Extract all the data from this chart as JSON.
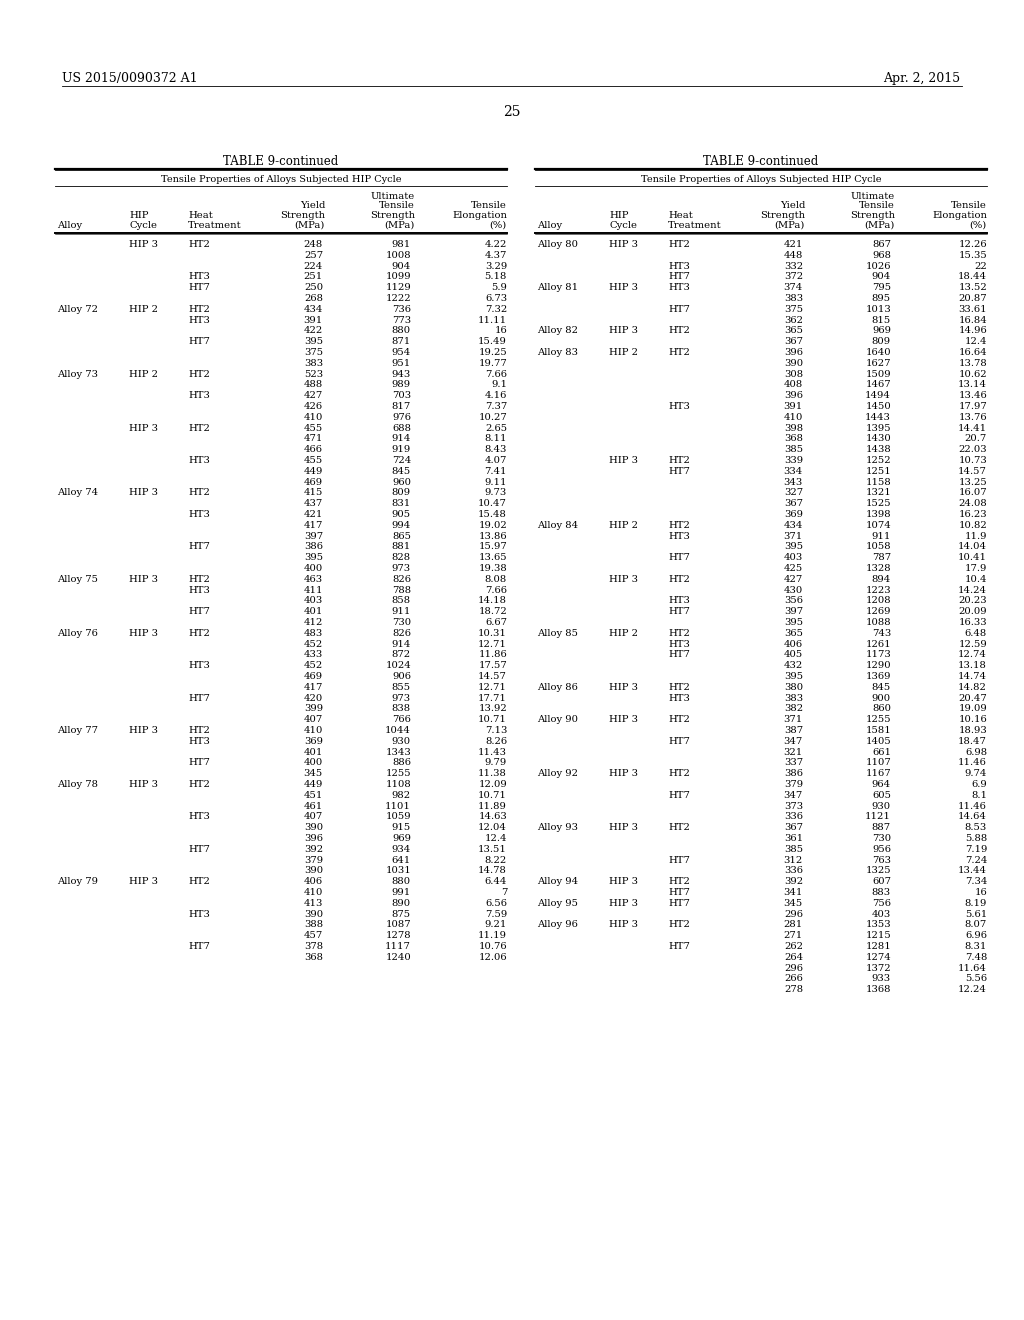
{
  "header_left": "US 2015/0090372 A1",
  "header_right": "Apr. 2, 2015",
  "page_number": "25",
  "table_title": "TABLE 9-continued",
  "table_subtitle": "Tensile Properties of Alloys Subjected HIP Cycle",
  "left_rows": [
    [
      "",
      "HIP 3",
      "HT2",
      "248",
      "981",
      "4.22"
    ],
    [
      "",
      "",
      "",
      "257",
      "1008",
      "4.37"
    ],
    [
      "",
      "",
      "",
      "224",
      "904",
      "3.29"
    ],
    [
      "",
      "",
      "HT3",
      "251",
      "1099",
      "5.18"
    ],
    [
      "",
      "",
      "HT7",
      "250",
      "1129",
      "5.9"
    ],
    [
      "",
      "",
      "",
      "268",
      "1222",
      "6.73"
    ],
    [
      "Alloy 72",
      "HIP 2",
      "HT2",
      "434",
      "736",
      "7.32"
    ],
    [
      "",
      "",
      "HT3",
      "391",
      "773",
      "11.11"
    ],
    [
      "",
      "",
      "",
      "422",
      "880",
      "16"
    ],
    [
      "",
      "",
      "HT7",
      "395",
      "871",
      "15.49"
    ],
    [
      "",
      "",
      "",
      "375",
      "954",
      "19.25"
    ],
    [
      "",
      "",
      "",
      "383",
      "951",
      "19.77"
    ],
    [
      "Alloy 73",
      "HIP 2",
      "HT2",
      "523",
      "943",
      "7.66"
    ],
    [
      "",
      "",
      "",
      "488",
      "989",
      "9.1"
    ],
    [
      "",
      "",
      "HT3",
      "427",
      "703",
      "4.16"
    ],
    [
      "",
      "",
      "",
      "426",
      "817",
      "7.37"
    ],
    [
      "",
      "",
      "",
      "410",
      "976",
      "10.27"
    ],
    [
      "",
      "HIP 3",
      "HT2",
      "455",
      "688",
      "2.65"
    ],
    [
      "",
      "",
      "",
      "471",
      "914",
      "8.11"
    ],
    [
      "",
      "",
      "",
      "466",
      "919",
      "8.43"
    ],
    [
      "",
      "",
      "HT3",
      "455",
      "724",
      "4.07"
    ],
    [
      "",
      "",
      "",
      "449",
      "845",
      "7.41"
    ],
    [
      "",
      "",
      "",
      "469",
      "960",
      "9.11"
    ],
    [
      "Alloy 74",
      "HIP 3",
      "HT2",
      "415",
      "809",
      "9.73"
    ],
    [
      "",
      "",
      "",
      "437",
      "831",
      "10.47"
    ],
    [
      "",
      "",
      "HT3",
      "421",
      "905",
      "15.48"
    ],
    [
      "",
      "",
      "",
      "417",
      "994",
      "19.02"
    ],
    [
      "",
      "",
      "",
      "397",
      "865",
      "13.86"
    ],
    [
      "",
      "",
      "HT7",
      "386",
      "881",
      "15.97"
    ],
    [
      "",
      "",
      "",
      "395",
      "828",
      "13.65"
    ],
    [
      "",
      "",
      "",
      "400",
      "973",
      "19.38"
    ],
    [
      "Alloy 75",
      "HIP 3",
      "HT2",
      "463",
      "826",
      "8.08"
    ],
    [
      "",
      "",
      "HT3",
      "411",
      "788",
      "7.66"
    ],
    [
      "",
      "",
      "",
      "403",
      "858",
      "14.18"
    ],
    [
      "",
      "",
      "HT7",
      "401",
      "911",
      "18.72"
    ],
    [
      "",
      "",
      "",
      "412",
      "730",
      "6.67"
    ],
    [
      "Alloy 76",
      "HIP 3",
      "HT2",
      "483",
      "826",
      "10.31"
    ],
    [
      "",
      "",
      "",
      "452",
      "914",
      "12.71"
    ],
    [
      "",
      "",
      "",
      "433",
      "872",
      "11.86"
    ],
    [
      "",
      "",
      "HT3",
      "452",
      "1024",
      "17.57"
    ],
    [
      "",
      "",
      "",
      "469",
      "906",
      "14.57"
    ],
    [
      "",
      "",
      "",
      "417",
      "855",
      "12.71"
    ],
    [
      "",
      "",
      "HT7",
      "420",
      "973",
      "17.71"
    ],
    [
      "",
      "",
      "",
      "399",
      "838",
      "13.92"
    ],
    [
      "",
      "",
      "",
      "407",
      "766",
      "10.71"
    ],
    [
      "Alloy 77",
      "HIP 3",
      "HT2",
      "410",
      "1044",
      "7.13"
    ],
    [
      "",
      "",
      "HT3",
      "369",
      "930",
      "8.26"
    ],
    [
      "",
      "",
      "",
      "401",
      "1343",
      "11.43"
    ],
    [
      "",
      "",
      "HT7",
      "400",
      "886",
      "9.79"
    ],
    [
      "",
      "",
      "",
      "345",
      "1255",
      "11.38"
    ],
    [
      "Alloy 78",
      "HIP 3",
      "HT2",
      "449",
      "1108",
      "12.09"
    ],
    [
      "",
      "",
      "",
      "451",
      "982",
      "10.71"
    ],
    [
      "",
      "",
      "",
      "461",
      "1101",
      "11.89"
    ],
    [
      "",
      "",
      "HT3",
      "407",
      "1059",
      "14.63"
    ],
    [
      "",
      "",
      "",
      "390",
      "915",
      "12.04"
    ],
    [
      "",
      "",
      "",
      "396",
      "969",
      "12.4"
    ],
    [
      "",
      "",
      "HT7",
      "392",
      "934",
      "13.51"
    ],
    [
      "",
      "",
      "",
      "379",
      "641",
      "8.22"
    ],
    [
      "",
      "",
      "",
      "390",
      "1031",
      "14.78"
    ],
    [
      "Alloy 79",
      "HIP 3",
      "HT2",
      "406",
      "880",
      "6.44"
    ],
    [
      "",
      "",
      "",
      "410",
      "991",
      "7"
    ],
    [
      "",
      "",
      "",
      "413",
      "890",
      "6.56"
    ],
    [
      "",
      "",
      "HT3",
      "390",
      "875",
      "7.59"
    ],
    [
      "",
      "",
      "",
      "388",
      "1087",
      "9.21"
    ],
    [
      "",
      "",
      "",
      "457",
      "1278",
      "11.19"
    ],
    [
      "",
      "",
      "HT7",
      "378",
      "1117",
      "10.76"
    ],
    [
      "",
      "",
      "",
      "368",
      "1240",
      "12.06"
    ]
  ],
  "right_rows": [
    [
      "Alloy 80",
      "HIP 3",
      "HT2",
      "421",
      "867",
      "12.26"
    ],
    [
      "",
      "",
      "",
      "448",
      "968",
      "15.35"
    ],
    [
      "",
      "",
      "HT3",
      "332",
      "1026",
      "22"
    ],
    [
      "",
      "",
      "HT7",
      "372",
      "904",
      "18.44"
    ],
    [
      "Alloy 81",
      "HIP 3",
      "HT3",
      "374",
      "795",
      "13.52"
    ],
    [
      "",
      "",
      "",
      "383",
      "895",
      "20.87"
    ],
    [
      "",
      "",
      "HT7",
      "375",
      "1013",
      "33.61"
    ],
    [
      "",
      "",
      "",
      "362",
      "815",
      "16.84"
    ],
    [
      "Alloy 82",
      "HIP 3",
      "HT2",
      "365",
      "969",
      "14.96"
    ],
    [
      "",
      "",
      "",
      "367",
      "809",
      "12.4"
    ],
    [
      "Alloy 83",
      "HIP 2",
      "HT2",
      "396",
      "1640",
      "16.64"
    ],
    [
      "",
      "",
      "",
      "390",
      "1627",
      "13.78"
    ],
    [
      "",
      "",
      "",
      "308",
      "1509",
      "10.62"
    ],
    [
      "",
      "",
      "",
      "408",
      "1467",
      "13.14"
    ],
    [
      "",
      "",
      "",
      "396",
      "1494",
      "13.46"
    ],
    [
      "",
      "",
      "HT3",
      "391",
      "1450",
      "17.97"
    ],
    [
      "",
      "",
      "",
      "410",
      "1443",
      "13.76"
    ],
    [
      "",
      "",
      "",
      "398",
      "1395",
      "14.41"
    ],
    [
      "",
      "",
      "",
      "368",
      "1430",
      "20.7"
    ],
    [
      "",
      "",
      "",
      "385",
      "1438",
      "22.03"
    ],
    [
      "",
      "HIP 3",
      "HT2",
      "339",
      "1252",
      "10.73"
    ],
    [
      "",
      "",
      "HT7",
      "334",
      "1251",
      "14.57"
    ],
    [
      "",
      "",
      "",
      "343",
      "1158",
      "13.25"
    ],
    [
      "",
      "",
      "",
      "327",
      "1321",
      "16.07"
    ],
    [
      "",
      "",
      "",
      "367",
      "1525",
      "24.08"
    ],
    [
      "",
      "",
      "",
      "369",
      "1398",
      "16.23"
    ],
    [
      "Alloy 84",
      "HIP 2",
      "HT2",
      "434",
      "1074",
      "10.82"
    ],
    [
      "",
      "",
      "HT3",
      "371",
      "911",
      "11.9"
    ],
    [
      "",
      "",
      "",
      "395",
      "1058",
      "14.04"
    ],
    [
      "",
      "",
      "HT7",
      "403",
      "787",
      "10.41"
    ],
    [
      "",
      "",
      "",
      "425",
      "1328",
      "17.9"
    ],
    [
      "",
      "HIP 3",
      "HT2",
      "427",
      "894",
      "10.4"
    ],
    [
      "",
      "",
      "",
      "430",
      "1223",
      "14.24"
    ],
    [
      "",
      "",
      "HT3",
      "356",
      "1208",
      "20.23"
    ],
    [
      "",
      "",
      "HT7",
      "397",
      "1269",
      "20.09"
    ],
    [
      "",
      "",
      "",
      "395",
      "1088",
      "16.33"
    ],
    [
      "Alloy 85",
      "HIP 2",
      "HT2",
      "365",
      "743",
      "6.48"
    ],
    [
      "",
      "",
      "HT3",
      "406",
      "1261",
      "12.59"
    ],
    [
      "",
      "",
      "HT7",
      "405",
      "1173",
      "12.74"
    ],
    [
      "",
      "",
      "",
      "432",
      "1290",
      "13.18"
    ],
    [
      "",
      "",
      "",
      "395",
      "1369",
      "14.74"
    ],
    [
      "Alloy 86",
      "HIP 3",
      "HT2",
      "380",
      "845",
      "14.82"
    ],
    [
      "",
      "",
      "HT3",
      "383",
      "900",
      "20.47"
    ],
    [
      "",
      "",
      "",
      "382",
      "860",
      "19.09"
    ],
    [
      "Alloy 90",
      "HIP 3",
      "HT2",
      "371",
      "1255",
      "10.16"
    ],
    [
      "",
      "",
      "",
      "387",
      "1581",
      "18.93"
    ],
    [
      "",
      "",
      "HT7",
      "347",
      "1405",
      "18.47"
    ],
    [
      "",
      "",
      "",
      "321",
      "661",
      "6.98"
    ],
    [
      "",
      "",
      "",
      "337",
      "1107",
      "11.46"
    ],
    [
      "Alloy 92",
      "HIP 3",
      "HT2",
      "386",
      "1167",
      "9.74"
    ],
    [
      "",
      "",
      "",
      "379",
      "964",
      "6.9"
    ],
    [
      "",
      "",
      "HT7",
      "347",
      "605",
      "8.1"
    ],
    [
      "",
      "",
      "",
      "373",
      "930",
      "11.46"
    ],
    [
      "",
      "",
      "",
      "336",
      "1121",
      "14.64"
    ],
    [
      "Alloy 93",
      "HIP 3",
      "HT2",
      "367",
      "887",
      "8.53"
    ],
    [
      "",
      "",
      "",
      "361",
      "730",
      "5.88"
    ],
    [
      "",
      "",
      "",
      "385",
      "956",
      "7.19"
    ],
    [
      "",
      "",
      "HT7",
      "312",
      "763",
      "7.24"
    ],
    [
      "",
      "",
      "",
      "336",
      "1325",
      "13.44"
    ],
    [
      "Alloy 94",
      "HIP 3",
      "HT2",
      "392",
      "607",
      "7.34"
    ],
    [
      "",
      "",
      "HT7",
      "341",
      "883",
      "16"
    ],
    [
      "Alloy 95",
      "HIP 3",
      "HT7",
      "345",
      "756",
      "8.19"
    ],
    [
      "",
      "",
      "",
      "296",
      "403",
      "5.61"
    ],
    [
      "Alloy 96",
      "HIP 3",
      "HT2",
      "281",
      "1353",
      "8.07"
    ],
    [
      "",
      "",
      "",
      "271",
      "1215",
      "6.96"
    ],
    [
      "",
      "",
      "HT7",
      "262",
      "1281",
      "8.31"
    ],
    [
      "",
      "",
      "",
      "264",
      "1274",
      "7.48"
    ],
    [
      "",
      "",
      "",
      "296",
      "1372",
      "11.64"
    ],
    [
      "",
      "",
      "",
      "266",
      "933",
      "5.56"
    ],
    [
      "",
      "",
      "",
      "278",
      "1368",
      "12.24"
    ]
  ],
  "background_color": "#ffffff",
  "text_color": "#000000",
  "line_color": "#000000"
}
